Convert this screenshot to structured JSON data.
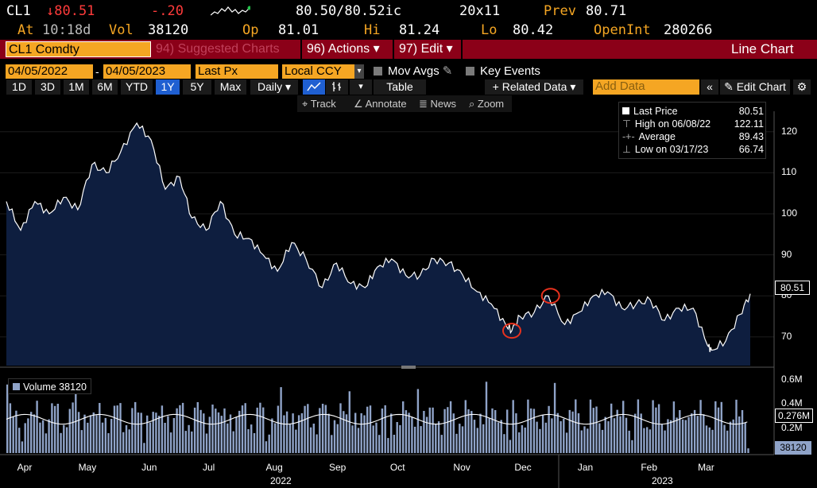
{
  "quote": {
    "ticker": "CL1",
    "last": "↓80.51",
    "change": "-.20",
    "bid_ask": "80.50/80.52ic",
    "size": "20x11",
    "prev_label": "Prev",
    "prev": "80.71",
    "at_label": "At",
    "at_time": "10:18d",
    "vol_label": "Vol",
    "vol": "38120",
    "op_label": "Op",
    "op": "81.01",
    "hi_label": "Hi",
    "hi": "81.24",
    "lo_label": "Lo",
    "lo": "80.42",
    "oi_label": "OpenInt",
    "oi": "280266"
  },
  "command": {
    "security": "CL1 Comdty",
    "suggested": "94) Suggested Charts",
    "actions": "96) Actions ▾",
    "edit": "97) Edit ▾",
    "title": "Line Chart"
  },
  "toolbar": {
    "start_date": "04/05/2022",
    "end_date": "04/05/2023",
    "field": "Last Px",
    "currency": "Local CCY",
    "mov_avgs": "Mov Avgs",
    "key_events": "Key Events",
    "periods": [
      "1D",
      "3D",
      "1M",
      "6M",
      "YTD",
      "1Y",
      "5Y",
      "Max"
    ],
    "selected_period": "1Y",
    "frequency": "Daily ▾",
    "table": "Table",
    "related": "+ Related Data ▾",
    "add_data_placeholder": "Add Data",
    "edit_chart": "Edit Chart",
    "track": "Track",
    "annotate": "Annotate",
    "news": "News",
    "zoom": "Zoom"
  },
  "legend": {
    "last_price_label": "Last Price",
    "last_price": "80.51",
    "high_label": "High on 06/08/22",
    "high": "122.11",
    "average_label": "Average",
    "average": "89.43",
    "low_label": "Low on 03/17/23",
    "low": "66.74"
  },
  "volume_legend": "Volume 38120",
  "price_axis": [
    "120",
    "110",
    "100",
    "90",
    "80",
    "70"
  ],
  "price_tag": "80.51",
  "volume_axis": [
    "0.6M",
    "0.4M",
    "0.2M"
  ],
  "volume_avg_tag": "0.276M",
  "volume_tag": "38120",
  "months": [
    "Apr",
    "May",
    "Jun",
    "Jul",
    "Aug",
    "Sep",
    "Oct",
    "Nov",
    "Dec",
    "Jan",
    "Feb",
    "Mar"
  ],
  "years": [
    "2022",
    "2023"
  ],
  "colors": {
    "amber": "#f5a623",
    "cmdbar": "#8b0018",
    "fill": "#0e1e3f",
    "selected": "#1f5fd1",
    "annotation": "#e8321e"
  },
  "chart_data": {
    "type": "area",
    "x_range": [
      "2022-04-05",
      "2023-04-05"
    ],
    "ylim": [
      63,
      125
    ],
    "price_points": [
      [
        "2022-04-05",
        103
      ],
      [
        "2022-04-12",
        96
      ],
      [
        "2022-04-19",
        103
      ],
      [
        "2022-04-26",
        100
      ],
      [
        "2022-05-03",
        104
      ],
      [
        "2022-05-10",
        101
      ],
      [
        "2022-05-17",
        112
      ],
      [
        "2022-05-24",
        110
      ],
      [
        "2022-05-31",
        115
      ],
      [
        "2022-06-08",
        122.11
      ],
      [
        "2022-06-15",
        118
      ],
      [
        "2022-06-22",
        106
      ],
      [
        "2022-06-29",
        109
      ],
      [
        "2022-07-05",
        99
      ],
      [
        "2022-07-12",
        96
      ],
      [
        "2022-07-19",
        103
      ],
      [
        "2022-07-26",
        95
      ],
      [
        "2022-08-02",
        94
      ],
      [
        "2022-08-09",
        90
      ],
      [
        "2022-08-16",
        86
      ],
      [
        "2022-08-23",
        93
      ],
      [
        "2022-08-30",
        89
      ],
      [
        "2022-09-07",
        82
      ],
      [
        "2022-09-14",
        88
      ],
      [
        "2022-09-21",
        83
      ],
      [
        "2022-09-28",
        82
      ],
      [
        "2022-10-04",
        87
      ],
      [
        "2022-10-11",
        89
      ],
      [
        "2022-10-18",
        85
      ],
      [
        "2022-10-25",
        85
      ],
      [
        "2022-11-01",
        89
      ],
      [
        "2022-11-08",
        88
      ],
      [
        "2022-11-15",
        85
      ],
      [
        "2022-11-22",
        81
      ],
      [
        "2022-11-29",
        78
      ],
      [
        "2022-12-06",
        73
      ],
      [
        "2022-12-09",
        71.5
      ],
      [
        "2022-12-13",
        75
      ],
      [
        "2022-12-20",
        76
      ],
      [
        "2022-12-27",
        80
      ],
      [
        "2023-01-04",
        73
      ],
      [
        "2023-01-11",
        76
      ],
      [
        "2023-01-18",
        80
      ],
      [
        "2023-01-25",
        81
      ],
      [
        "2023-02-01",
        77
      ],
      [
        "2023-02-08",
        78
      ],
      [
        "2023-02-15",
        79
      ],
      [
        "2023-02-22",
        74
      ],
      [
        "2023-03-01",
        77
      ],
      [
        "2023-03-08",
        77
      ],
      [
        "2023-03-15",
        68
      ],
      [
        "2023-03-17",
        66.74
      ],
      [
        "2023-03-24",
        69
      ],
      [
        "2023-03-31",
        75.5
      ],
      [
        "2023-04-05",
        80.51
      ]
    ],
    "volume_avg": 276000,
    "volume_last": 38120,
    "volume_ylim": [
      0,
      650000
    ],
    "annotations": [
      [
        "2022-12-09",
        71.5
      ],
      [
        "2022-12-28",
        80
      ]
    ]
  }
}
